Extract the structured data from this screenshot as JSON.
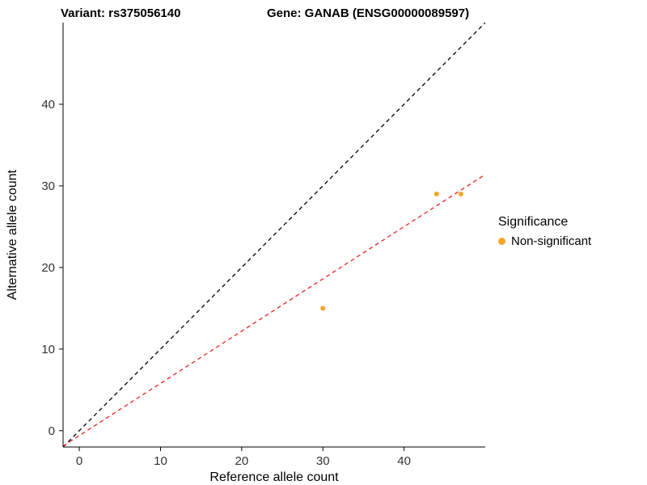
{
  "titles": {
    "variant": "Variant: rs375056140",
    "gene": "Gene: GANAB (ENSG00000089597)"
  },
  "axes": {
    "x_label": "Reference allele count",
    "y_label": "Alternative allele count"
  },
  "legend": {
    "title": "Significance",
    "items": [
      {
        "label": "Non-significant",
        "color": "#F5A623"
      }
    ]
  },
  "colors": {
    "point": "#F5A623",
    "identity_line": "#000000",
    "fit_line": "#EE2222",
    "axis": "#000000",
    "tick_text": "#333333"
  },
  "chart_data": {
    "type": "scatter",
    "title": "Variant: rs375056140 — Gene: GANAB (ENSG00000089597)",
    "xlabel": "Reference allele count",
    "ylabel": "Alternative allele count",
    "xlim": [
      -2,
      50
    ],
    "ylim": [
      -2,
      50
    ],
    "xticks": [
      0,
      10,
      20,
      30,
      40
    ],
    "yticks": [
      0,
      10,
      20,
      30,
      40
    ],
    "grid": false,
    "legend_position": "right",
    "points": [
      {
        "x": 30,
        "y": 15
      },
      {
        "x": 44,
        "y": 29
      },
      {
        "x": 47,
        "y": 29
      }
    ],
    "lines": [
      {
        "name": "identity",
        "slope": 1,
        "intercept": 0,
        "dashed": true,
        "color": "#000000"
      },
      {
        "name": "fit",
        "slope": 0.64,
        "intercept": -0.6,
        "dashed": true,
        "color": "#EE2222"
      }
    ]
  }
}
